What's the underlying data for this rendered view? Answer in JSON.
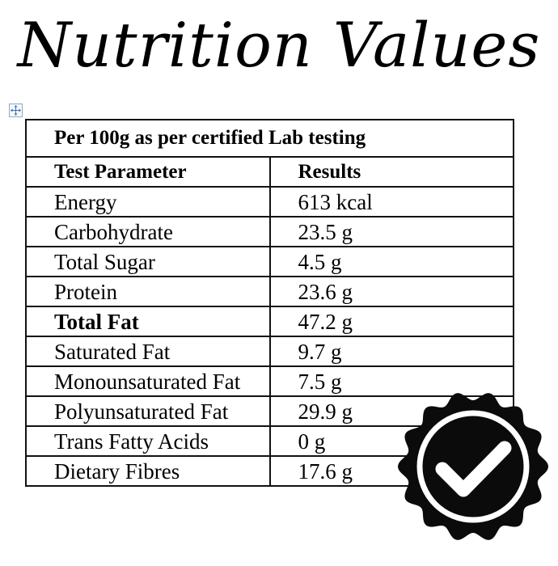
{
  "title": "Nutrition Values",
  "table": {
    "caption": "Per 100g as per certified Lab testing",
    "col_parameter": "Test Parameter",
    "col_results": "Results",
    "rows": [
      {
        "parameter": "Energy",
        "result": "613 kcal"
      },
      {
        "parameter": "Carbohydrate",
        "result": "23.5 g"
      },
      {
        "parameter": "Total Sugar",
        "result": "4.5 g"
      },
      {
        "parameter": "Protein",
        "result": "23.6 g"
      },
      {
        "parameter": "Total Fat",
        "result": "47.2 g"
      },
      {
        "parameter": "Saturated Fat",
        "result": "9.7 g"
      },
      {
        "parameter": "Monounsaturated Fat",
        "result": "7.5 g"
      },
      {
        "parameter": "Polyunsaturated Fat",
        "result": "29.9 g"
      },
      {
        "parameter": "Trans Fatty Acids",
        "result": "0 g"
      },
      {
        "parameter": "Dietary Fibres",
        "result": "17.6 g"
      }
    ]
  },
  "icons": {
    "table_handle": "move-cross-icon",
    "badge": "check-badge-icon"
  },
  "colors": {
    "text": "#000000",
    "badge": "#0b0b0b",
    "handle_border": "#9aa8bd",
    "handle_arrows": "#3e6fb0"
  }
}
